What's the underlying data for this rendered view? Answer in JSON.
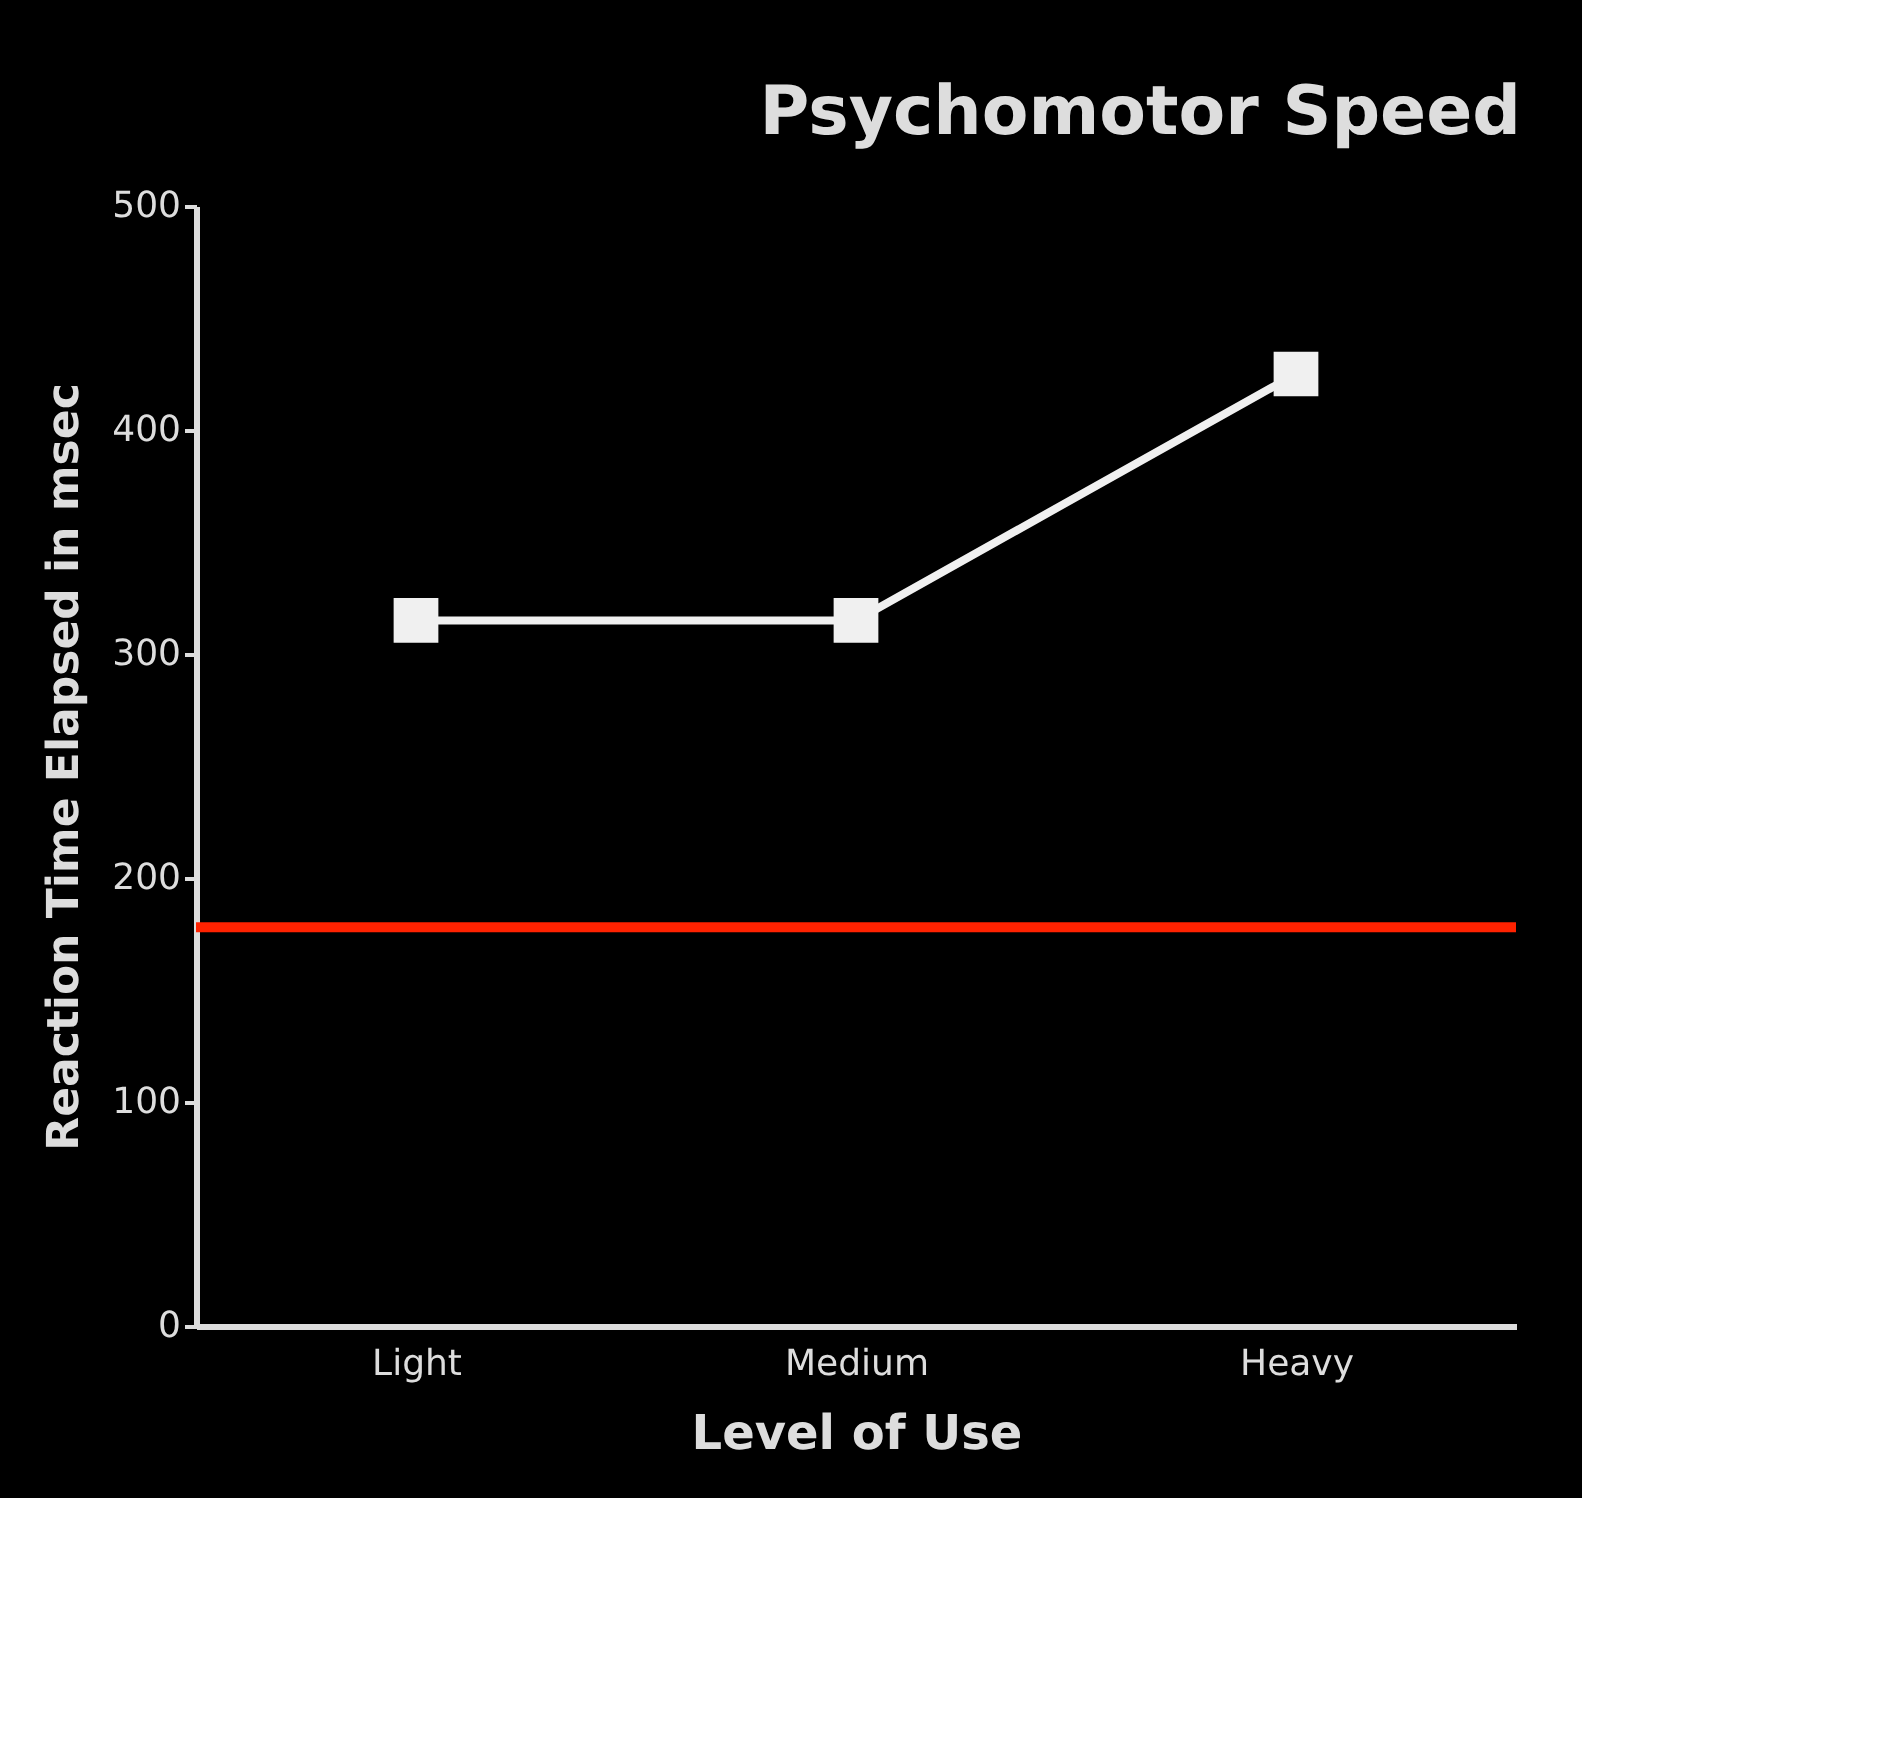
{
  "chart_data": {
    "type": "line",
    "title": "Psychomotor Speed",
    "xlabel": "Level of Use",
    "ylabel": "Reaction Time Elapsed in msec",
    "categories": [
      "Light",
      "Medium",
      "Heavy"
    ],
    "series": [
      {
        "color": "#f0f0f0",
        "values": [
          315,
          315,
          425
        ]
      }
    ],
    "ylim": [
      0,
      500
    ],
    "yticks": [
      0,
      100,
      200,
      300,
      400,
      500
    ],
    "grid": false,
    "marker": "square",
    "line_style": "solid",
    "ref_lines": [
      {
        "axis": "y",
        "value": 178,
        "color": "#ff2200",
        "line_style": "solid"
      }
    ]
  }
}
